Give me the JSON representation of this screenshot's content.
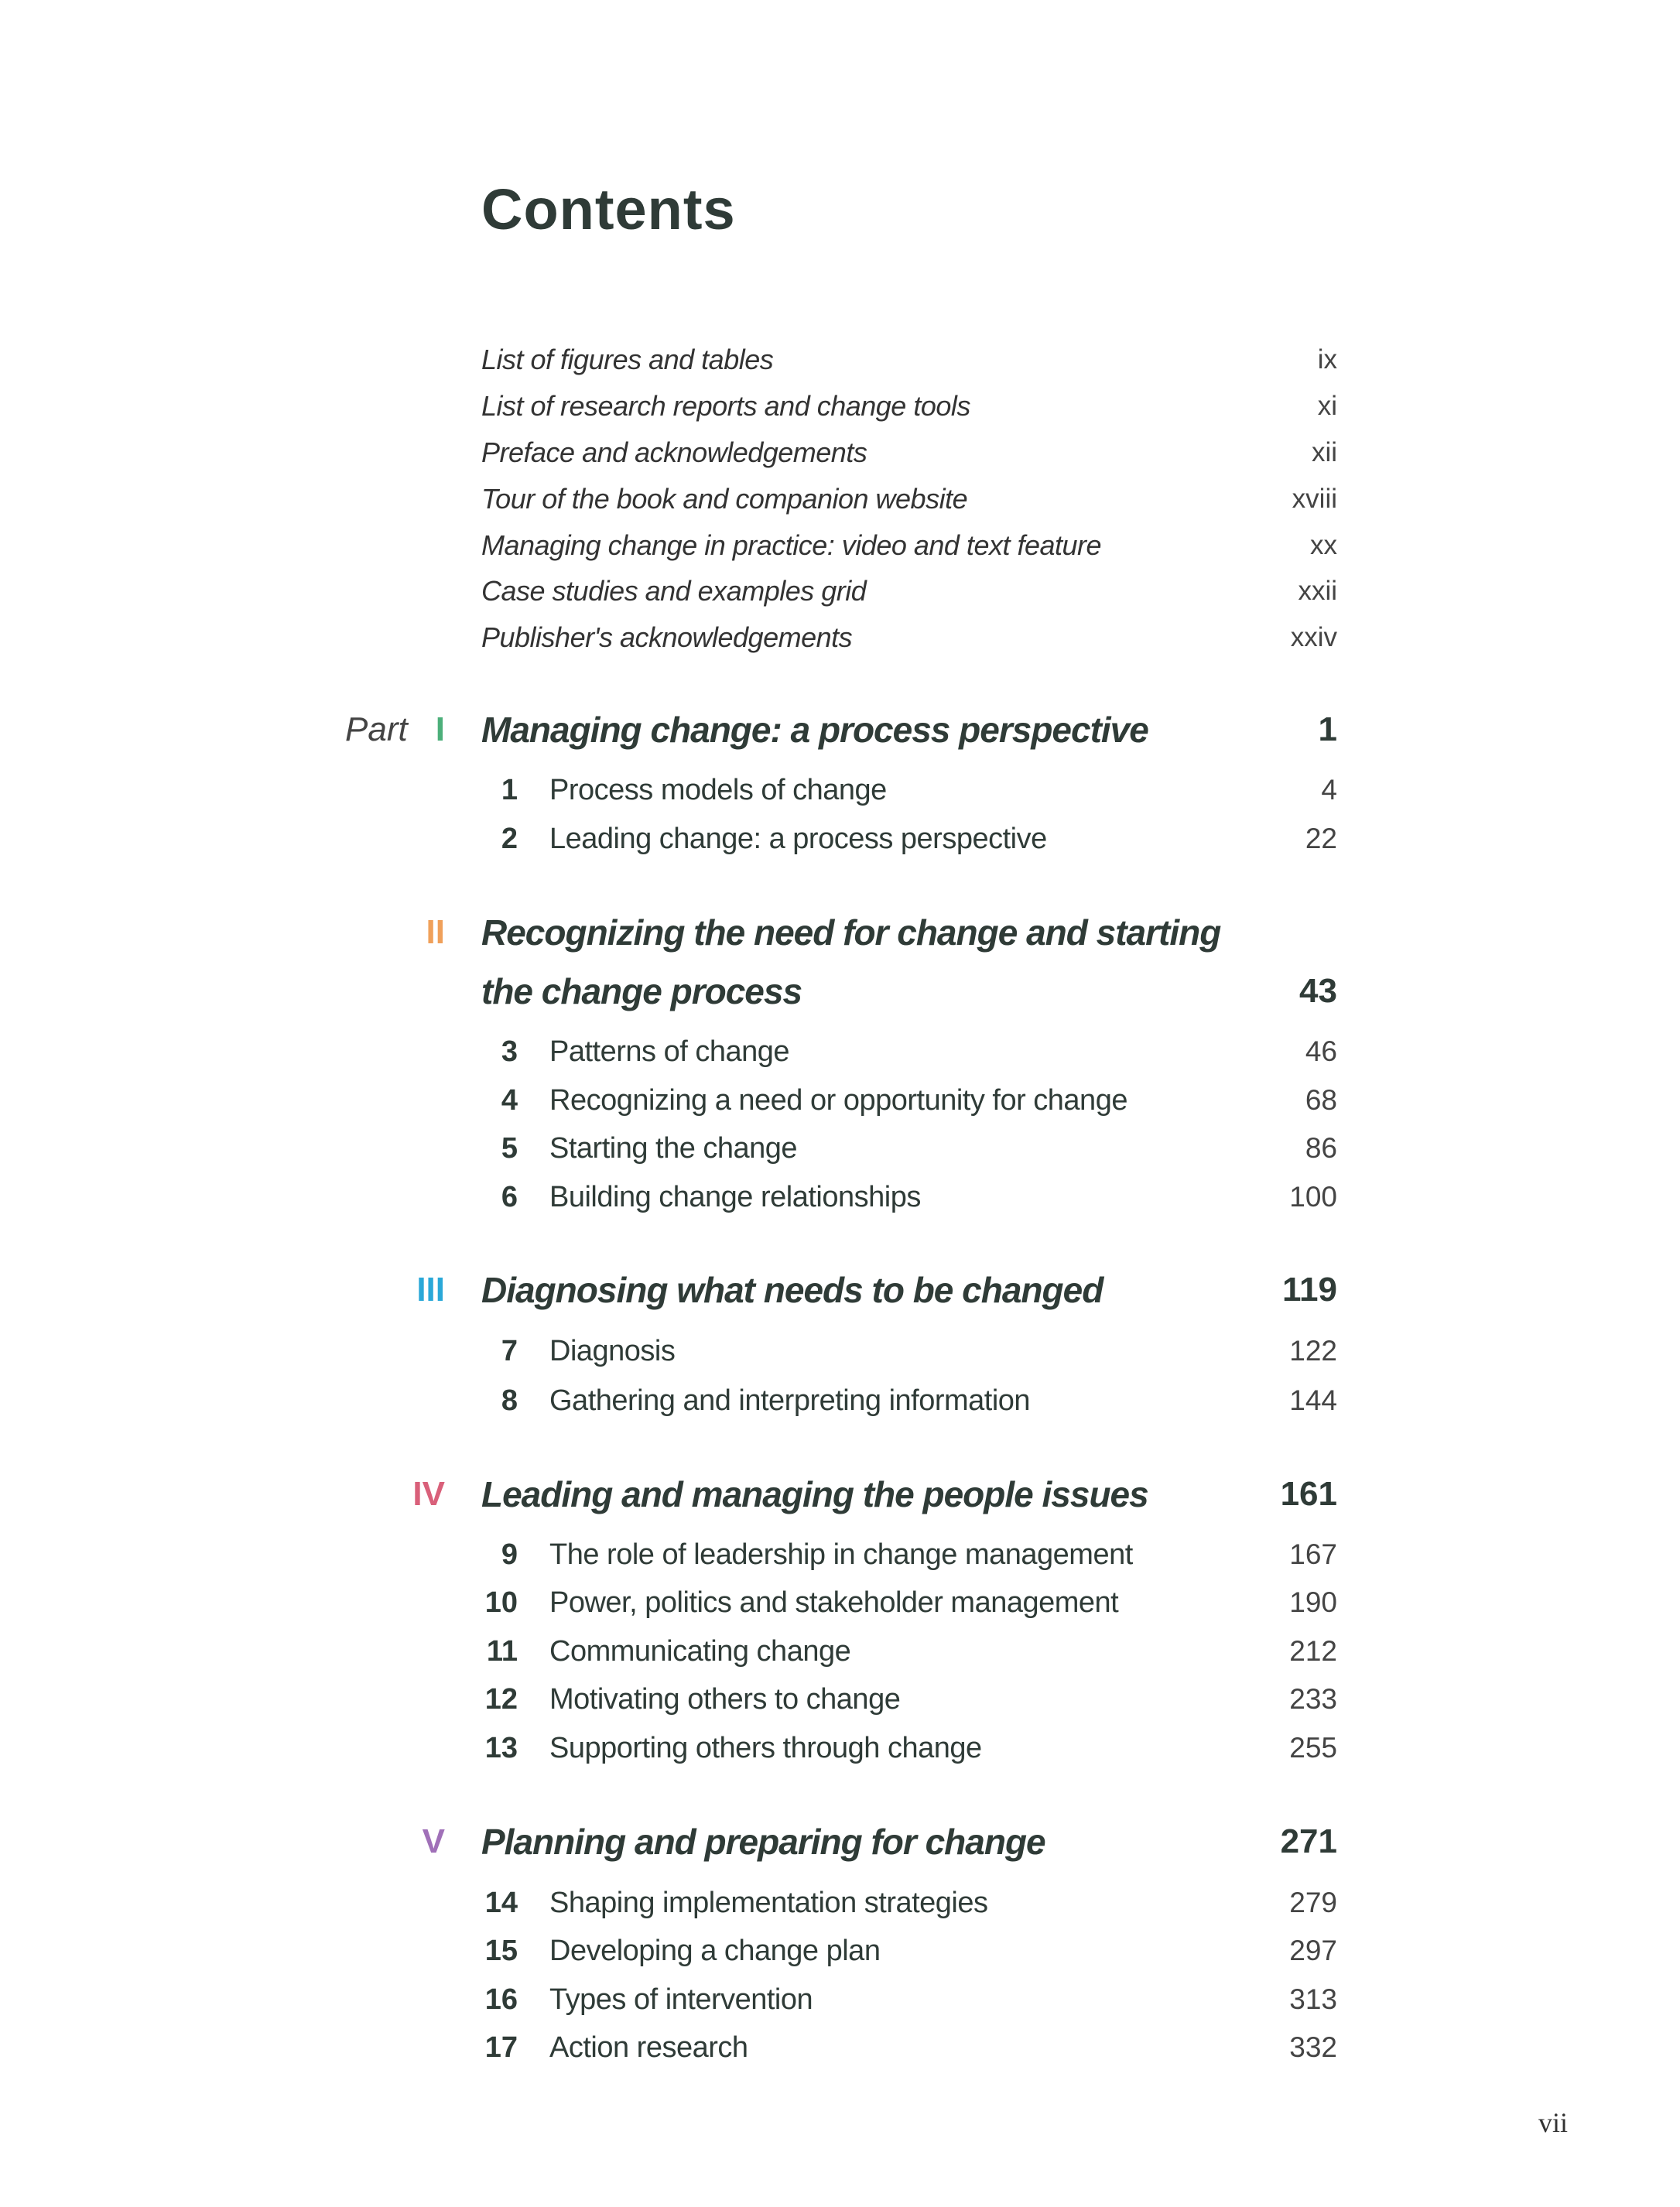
{
  "title": "Contents",
  "front_matter": [
    {
      "label": "List of figures and tables",
      "page": "ix"
    },
    {
      "label": "List of research reports and change tools",
      "page": "xi"
    },
    {
      "label": "Preface and acknowledgements",
      "page": "xii"
    },
    {
      "label": "Tour of the book and companion website",
      "page": "xviii"
    },
    {
      "label": "Managing change in practice: video and text feature",
      "page": "xx"
    },
    {
      "label": "Case studies and examples grid",
      "page": "xxii"
    },
    {
      "label": "Publisher's acknowledgements",
      "page": "xxiv"
    }
  ],
  "part_word": "Part",
  "parts": [
    {
      "numeral": "I",
      "color": "#4caf7a",
      "title_lines": [
        "Managing change: a process perspective"
      ],
      "page": "1",
      "chapters": [
        {
          "num": "1",
          "title": "Process models of change",
          "page": "4"
        },
        {
          "num": "2",
          "title": "Leading change: a process perspective",
          "page": "22"
        }
      ]
    },
    {
      "numeral": "II",
      "color": "#f0a05a",
      "title_lines": [
        "Recognizing the need for change and starting",
        "the change process"
      ],
      "page": "43",
      "chapters": [
        {
          "num": "3",
          "title": "Patterns of change",
          "page": "46"
        },
        {
          "num": "4",
          "title": "Recognizing a need or opportunity for change",
          "page": "68"
        },
        {
          "num": "5",
          "title": "Starting the change",
          "page": "86"
        },
        {
          "num": "6",
          "title": "Building change relationships",
          "page": "100"
        }
      ]
    },
    {
      "numeral": "III",
      "color": "#2aa8d8",
      "title_lines": [
        "Diagnosing what needs to be changed"
      ],
      "page": "119",
      "chapters": [
        {
          "num": "7",
          "title": "Diagnosis",
          "page": "122"
        },
        {
          "num": "8",
          "title": "Gathering and interpreting information",
          "page": "144"
        }
      ]
    },
    {
      "numeral": "IV",
      "color": "#d9607a",
      "title_lines": [
        "Leading and managing the people issues"
      ],
      "page": "161",
      "chapters": [
        {
          "num": "9",
          "title": "The role of leadership in change management",
          "page": "167"
        },
        {
          "num": "10",
          "title": "Power, politics and stakeholder management",
          "page": "190"
        },
        {
          "num": "11",
          "title": "Communicating change",
          "page": "212"
        },
        {
          "num": "12",
          "title": "Motivating others to change",
          "page": "233"
        },
        {
          "num": "13",
          "title": "Supporting others through change",
          "page": "255"
        }
      ]
    },
    {
      "numeral": "V",
      "color": "#a070b8",
      "title_lines": [
        "Planning and preparing for change"
      ],
      "page": "271",
      "chapters": [
        {
          "num": "14",
          "title": "Shaping implementation strategies",
          "page": "279"
        },
        {
          "num": "15",
          "title": "Developing a change plan",
          "page": "297"
        },
        {
          "num": "16",
          "title": "Types of intervention",
          "page": "313"
        },
        {
          "num": "17",
          "title": "Action research",
          "page": "332"
        }
      ]
    }
  ],
  "folio": "vii"
}
